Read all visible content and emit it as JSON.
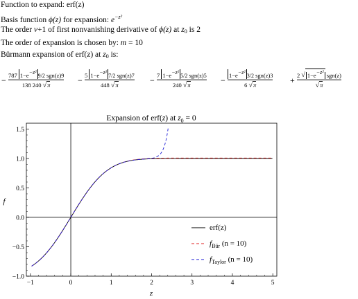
{
  "text": {
    "line1_prefix": "Function to expand: ",
    "line1_func": "erf(z)",
    "line2_prefix": "Basis function ",
    "line2_phi": "ϕ(z)",
    "line2_mid": " for expansion: ",
    "line2_basis": "e",
    "line2_basis_exp": "−z²",
    "line3_a": "The order ",
    "line3_nu": "ν",
    "line3_b": "+1 of first nonvanishing derivative of ",
    "line3_phi": "ϕ(z)",
    "line3_c": " at ",
    "line3_z0": "z",
    "line3_z0_sub": "0",
    "line3_d": " is 2",
    "line4_prefix": "The order of expansion is chosen by: ",
    "line4_m": "m",
    "line4_val": " = 10",
    "line5_a": "Bürmann expansion of erf(z) at ",
    "line5_z0": "z",
    "line5_z0_sub": "0",
    "line5_b": " is:"
  },
  "formula": {
    "lead_sign": "−",
    "terms": [
      {
        "coef": "787",
        "power": "9/2",
        "odd": "9",
        "den_coef": "138 240",
        "sign_after": "−"
      },
      {
        "coef": "5",
        "power": "7/2",
        "odd": "7",
        "den_coef": "448",
        "sign_after": "−"
      },
      {
        "coef": "7",
        "power": "5/2",
        "odd": "5",
        "den_coef": "240",
        "sign_after": "−"
      },
      {
        "coef": "",
        "power": "3/2",
        "odd": "3",
        "den_coef": "6",
        "sign_after": "+"
      },
      {
        "coef": "2",
        "power": "",
        "odd": "",
        "den_coef": "",
        "sign_after": ""
      }
    ],
    "abs_inner": "1−e",
    "abs_exp": "−z²",
    "sgn": "sgn(z)",
    "sqrt_pi": "π"
  },
  "chart_data": {
    "type": "line",
    "title": "Expansion of erf(z)  at z₀ = 0",
    "title_main": "Expansion of erf(",
    "title_z": "z",
    "title_mid": ")  at ",
    "title_z0": "z",
    "title_z0_sub": "0",
    "title_tail": " = 0",
    "xlabel": "z",
    "ylabel": "f",
    "xlim": [
      -1.1,
      5.1
    ],
    "ylim": [
      -1.0,
      1.6
    ],
    "xticks": [
      "−1",
      "0",
      "1",
      "2",
      "3",
      "4",
      "5"
    ],
    "xtick_values": [
      -1,
      0,
      1,
      2,
      3,
      4,
      5
    ],
    "yticks": [
      "−1.0",
      "−0.5",
      "0.0",
      "0.5",
      "1.0",
      "1.5"
    ],
    "ytick_values": [
      -1.0,
      -0.5,
      0.0,
      0.5,
      1.0,
      1.5
    ],
    "grid": false,
    "legend_position": "bottom-right",
    "series": [
      {
        "name": "erf(z)",
        "color": "#000000",
        "dash": "solid"
      },
      {
        "name": "f_Bür (n = 10)",
        "color": "#e02020",
        "dash": "dashed"
      },
      {
        "name": "f_Taylor (n = 10)",
        "color": "#1a1ad6",
        "dash": "dashed"
      }
    ],
    "legend": [
      {
        "main": "erf(z)",
        "sub": "",
        "tail": ""
      },
      {
        "main": "f",
        "sub": "Bür",
        "tail": " (n = 10)"
      },
      {
        "main": "f",
        "sub": "Taylor",
        "tail": " (n = 10)"
      }
    ]
  }
}
